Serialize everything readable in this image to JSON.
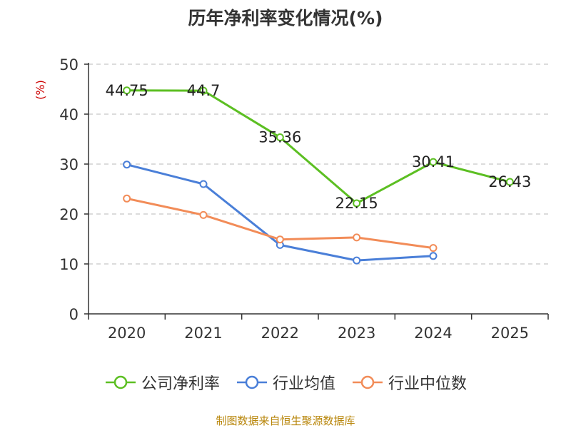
{
  "chart_data": {
    "type": "line",
    "title": "历年净利率变化情况(%)",
    "ylabel": "(%)",
    "xlabel": "",
    "ylim": [
      0,
      50
    ],
    "yticks": [
      0,
      10,
      20,
      30,
      40,
      50
    ],
    "grid": true,
    "legend_position": "bottom",
    "categories": [
      "2020",
      "2021",
      "2022",
      "2023",
      "2024",
      "2025"
    ],
    "series": [
      {
        "name": "公司净利率",
        "color": "#5cbf22",
        "values": [
          44.75,
          44.7,
          35.36,
          22.15,
          30.41,
          26.43
        ],
        "labels": [
          "44.75",
          "44.7",
          "35.36",
          "22.15",
          "30.41",
          "26.43"
        ]
      },
      {
        "name": "行业均值",
        "color": "#4a7fd8",
        "values": [
          29.9,
          26.0,
          13.8,
          10.7,
          11.6,
          null
        ]
      },
      {
        "name": "行业中位数",
        "color": "#f28c58",
        "values": [
          23.1,
          19.8,
          14.9,
          15.3,
          13.2,
          null
        ]
      }
    ]
  },
  "source": "制图数据来自恒生聚源数据库"
}
